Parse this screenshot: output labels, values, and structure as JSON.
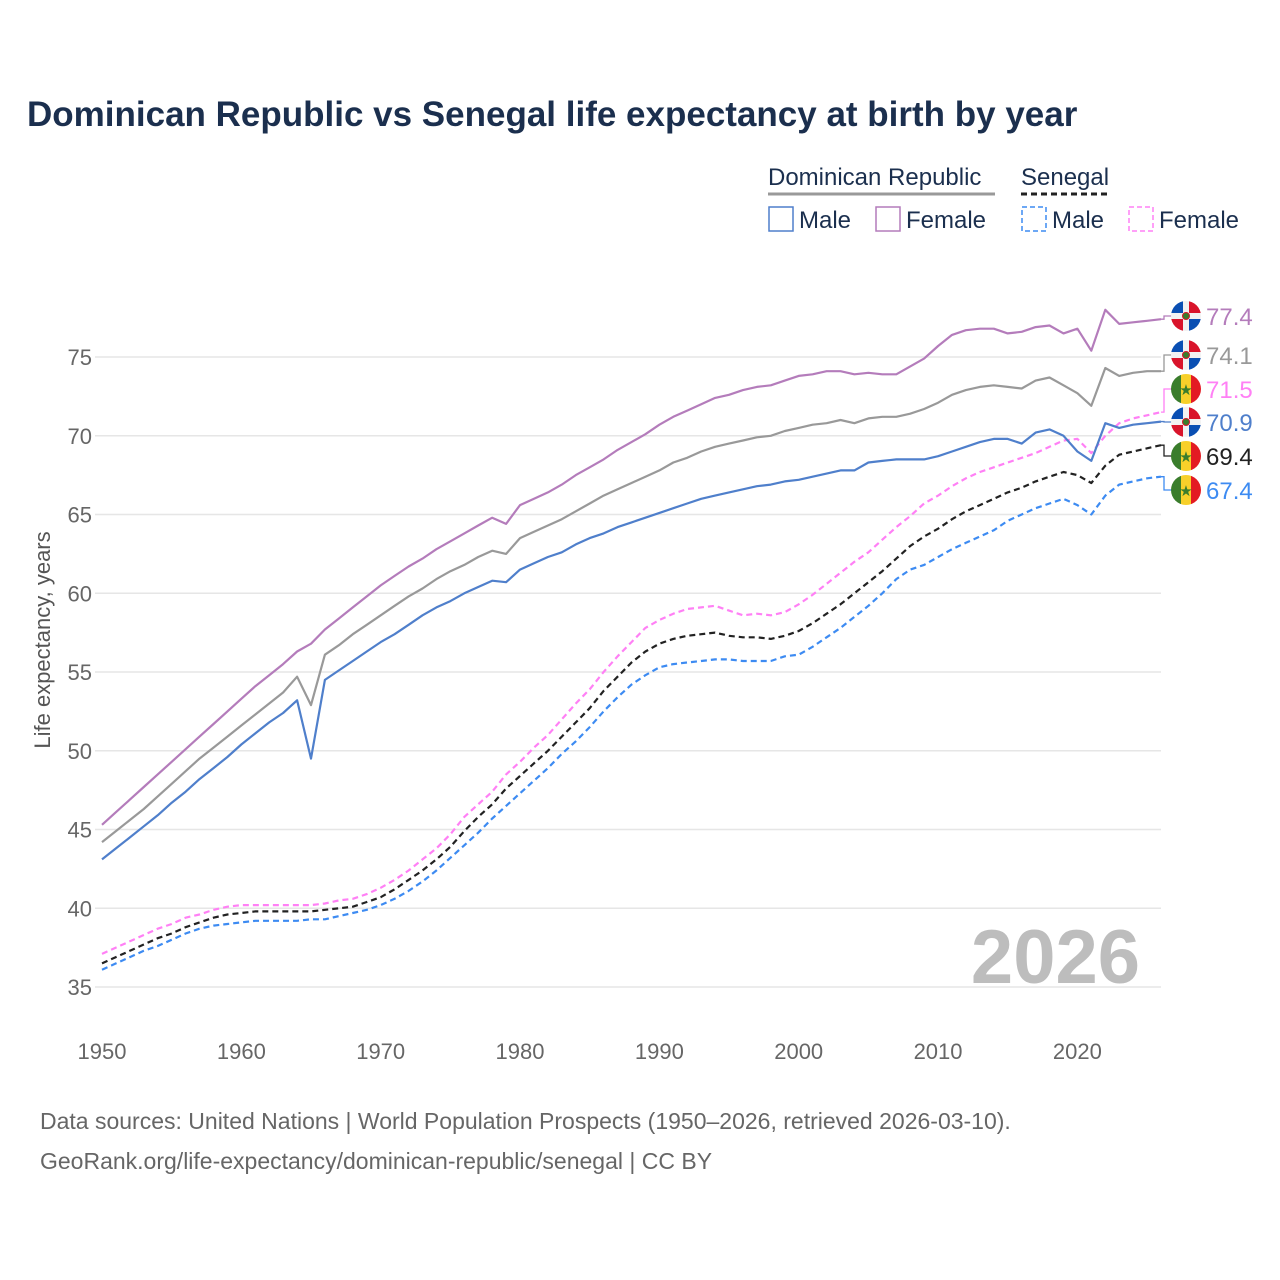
{
  "title": "Dominican Republic vs Senegal life expectancy at birth by year",
  "legend": {
    "groups": [
      "Dominican Republic",
      "Senegal"
    ],
    "items": [
      "Male",
      "Female",
      "Male",
      "Female"
    ]
  },
  "year_watermark": "2026",
  "footer": {
    "line1": "Data sources: United Nations | World Population Prospects (1950–2026, retrieved 2026-03-10).",
    "line2": "GeoRank.org/life-expectancy/dominican-republic/senegal | CC BY"
  },
  "chart_data": {
    "type": "line",
    "title": "Dominican Republic vs Senegal life expectancy at birth by year",
    "xlabel": "",
    "ylabel": "Life expectancy, years",
    "xlim": [
      1950,
      2026
    ],
    "ylim": [
      34,
      79
    ],
    "xticks": [
      "1950",
      "1960",
      "1970",
      "1980",
      "1990",
      "2000",
      "2010",
      "2020"
    ],
    "yticks": [
      "35",
      "40",
      "45",
      "50",
      "55",
      "60",
      "65",
      "70",
      "75"
    ],
    "grid": true,
    "legend_position": "top-right",
    "x_start": 1950,
    "series": [
      {
        "name": "Dominican Republic Female",
        "country": "Dominican Republic",
        "sex": "Female",
        "color": "#b47cbb",
        "dashed": false,
        "end_label": "77.4",
        "values": [
          45.3,
          46.1,
          46.9,
          47.7,
          48.5,
          49.3,
          50.1,
          50.9,
          51.7,
          52.5,
          53.3,
          54.1,
          54.8,
          55.5,
          56.3,
          56.8,
          57.7,
          58.4,
          59.1,
          59.8,
          60.5,
          61.1,
          61.7,
          62.2,
          62.8,
          63.3,
          63.8,
          64.3,
          64.8,
          64.4,
          65.6,
          66.0,
          66.4,
          66.9,
          67.5,
          68.0,
          68.5,
          69.1,
          69.6,
          70.1,
          70.7,
          71.2,
          71.6,
          72.0,
          72.4,
          72.6,
          72.9,
          73.1,
          73.2,
          73.5,
          73.8,
          73.9,
          74.1,
          74.1,
          73.9,
          74.0,
          73.9,
          73.9,
          74.4,
          74.9,
          75.7,
          76.4,
          76.7,
          76.8,
          76.8,
          76.5,
          76.6,
          76.9,
          77.0,
          76.5,
          76.8,
          75.4,
          78.0,
          77.1,
          77.2,
          77.3,
          77.4
        ]
      },
      {
        "name": "Dominican Republic Total",
        "country": "Dominican Republic",
        "sex": "Total",
        "color": "#999999",
        "dashed": false,
        "end_label": "74.1",
        "values": [
          44.2,
          44.9,
          45.6,
          46.3,
          47.1,
          47.9,
          48.7,
          49.5,
          50.2,
          50.9,
          51.6,
          52.3,
          53.0,
          53.7,
          54.7,
          52.9,
          56.1,
          56.7,
          57.4,
          58.0,
          58.6,
          59.2,
          59.8,
          60.3,
          60.9,
          61.4,
          61.8,
          62.3,
          62.7,
          62.5,
          63.5,
          63.9,
          64.3,
          64.7,
          65.2,
          65.7,
          66.2,
          66.6,
          67.0,
          67.4,
          67.8,
          68.3,
          68.6,
          69.0,
          69.3,
          69.5,
          69.7,
          69.9,
          70.0,
          70.3,
          70.5,
          70.7,
          70.8,
          71.0,
          70.8,
          71.1,
          71.2,
          71.2,
          71.4,
          71.7,
          72.1,
          72.6,
          72.9,
          73.1,
          73.2,
          73.1,
          73.0,
          73.5,
          73.7,
          73.2,
          72.7,
          71.9,
          74.3,
          73.8,
          74.0,
          74.1,
          74.1
        ]
      },
      {
        "name": "Senegal Female",
        "country": "Senegal",
        "sex": "Female",
        "color": "#ff80f5",
        "dashed": true,
        "end_label": "71.5",
        "values": [
          37.1,
          37.5,
          37.9,
          38.3,
          38.7,
          39.0,
          39.4,
          39.6,
          39.9,
          40.1,
          40.2,
          40.2,
          40.2,
          40.2,
          40.2,
          40.2,
          40.3,
          40.5,
          40.6,
          40.9,
          41.3,
          41.8,
          42.4,
          43.1,
          43.8,
          44.7,
          45.8,
          46.6,
          47.4,
          48.5,
          49.3,
          50.2,
          51.0,
          52.0,
          53.0,
          53.9,
          55.0,
          56.0,
          56.9,
          57.8,
          58.3,
          58.7,
          59.0,
          59.1,
          59.2,
          58.9,
          58.6,
          58.7,
          58.6,
          58.8,
          59.3,
          59.9,
          60.6,
          61.3,
          62.0,
          62.6,
          63.4,
          64.2,
          64.9,
          65.7,
          66.2,
          66.8,
          67.3,
          67.7,
          68.0,
          68.3,
          68.6,
          68.9,
          69.3,
          69.7,
          69.8,
          68.9,
          70.0,
          70.8,
          71.1,
          71.3,
          71.5
        ]
      },
      {
        "name": "Dominican Republic Male",
        "country": "Dominican Republic",
        "sex": "Male",
        "color": "#4f7fcb",
        "dashed": false,
        "end_label": "70.9",
        "values": [
          43.1,
          43.8,
          44.5,
          45.2,
          45.9,
          46.7,
          47.4,
          48.2,
          48.9,
          49.6,
          50.4,
          51.1,
          51.8,
          52.4,
          53.2,
          49.5,
          54.5,
          55.1,
          55.7,
          56.3,
          56.9,
          57.4,
          58.0,
          58.6,
          59.1,
          59.5,
          60.0,
          60.4,
          60.8,
          60.7,
          61.5,
          61.9,
          62.3,
          62.6,
          63.1,
          63.5,
          63.8,
          64.2,
          64.5,
          64.8,
          65.1,
          65.4,
          65.7,
          66.0,
          66.2,
          66.4,
          66.6,
          66.8,
          66.9,
          67.1,
          67.2,
          67.4,
          67.6,
          67.8,
          67.8,
          68.3,
          68.4,
          68.5,
          68.5,
          68.5,
          68.7,
          69.0,
          69.3,
          69.6,
          69.8,
          69.8,
          69.5,
          70.2,
          70.4,
          70.0,
          69.0,
          68.4,
          70.8,
          70.5,
          70.7,
          70.8,
          70.9
        ]
      },
      {
        "name": "Senegal Total",
        "country": "Senegal",
        "sex": "Total",
        "color": "#222222",
        "dashed": true,
        "end_label": "69.4",
        "values": [
          36.5,
          36.9,
          37.3,
          37.7,
          38.1,
          38.4,
          38.8,
          39.1,
          39.4,
          39.6,
          39.7,
          39.8,
          39.8,
          39.8,
          39.8,
          39.8,
          39.9,
          40.0,
          40.1,
          40.4,
          40.7,
          41.2,
          41.8,
          42.4,
          43.1,
          43.9,
          44.9,
          45.8,
          46.6,
          47.6,
          48.4,
          49.2,
          50.0,
          50.9,
          51.8,
          52.7,
          53.8,
          54.7,
          55.6,
          56.3,
          56.8,
          57.1,
          57.3,
          57.4,
          57.5,
          57.3,
          57.2,
          57.2,
          57.1,
          57.3,
          57.6,
          58.1,
          58.7,
          59.3,
          60.0,
          60.7,
          61.4,
          62.2,
          63.0,
          63.6,
          64.1,
          64.7,
          65.2,
          65.6,
          66.0,
          66.4,
          66.7,
          67.1,
          67.4,
          67.7,
          67.5,
          67.0,
          68.1,
          68.8,
          69.0,
          69.2,
          69.4
        ]
      },
      {
        "name": "Senegal Male",
        "country": "Senegal",
        "sex": "Male",
        "color": "#3d8bf2",
        "dashed": true,
        "end_label": "67.4",
        "values": [
          36.1,
          36.5,
          36.9,
          37.3,
          37.6,
          38.0,
          38.4,
          38.7,
          38.9,
          39.0,
          39.1,
          39.2,
          39.2,
          39.2,
          39.2,
          39.3,
          39.3,
          39.5,
          39.7,
          39.9,
          40.2,
          40.6,
          41.1,
          41.7,
          42.4,
          43.2,
          44.0,
          44.8,
          45.7,
          46.5,
          47.3,
          48.1,
          48.9,
          49.8,
          50.6,
          51.5,
          52.5,
          53.4,
          54.2,
          54.8,
          55.3,
          55.5,
          55.6,
          55.7,
          55.8,
          55.8,
          55.7,
          55.7,
          55.7,
          56.0,
          56.1,
          56.6,
          57.2,
          57.8,
          58.5,
          59.2,
          60.0,
          60.9,
          61.5,
          61.8,
          62.3,
          62.8,
          63.2,
          63.6,
          64.0,
          64.6,
          65.0,
          65.4,
          65.7,
          66.0,
          65.6,
          65.0,
          66.2,
          66.9,
          67.1,
          67.3,
          67.4
        ]
      }
    ]
  }
}
